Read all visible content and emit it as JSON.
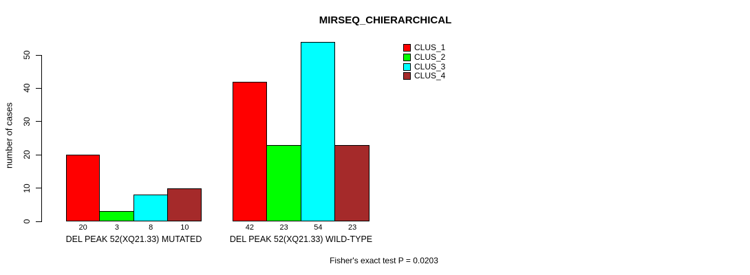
{
  "chart_data": {
    "type": "bar",
    "title": "MIRSEQ_CHIERARCHICAL",
    "ylabel": "number of cases",
    "xlabel": "",
    "ylim": [
      0,
      50
    ],
    "yticks": [
      0,
      10,
      20,
      30,
      40,
      50
    ],
    "grid": false,
    "legend_position": "top-right",
    "series": [
      {
        "name": "CLUS_1",
        "color": "#FF0000"
      },
      {
        "name": "CLUS_2",
        "color": "#00FF00"
      },
      {
        "name": "CLUS_3",
        "color": "#00FFFF"
      },
      {
        "name": "CLUS_4",
        "color": "#A52A2A"
      }
    ],
    "groups": [
      {
        "label": "DEL PEAK 52(XQ21.33) MUTATED",
        "values": [
          20,
          3,
          8,
          10
        ]
      },
      {
        "label": "DEL PEAK 52(XQ21.33) WILD-TYPE",
        "values": [
          42,
          23,
          54,
          23
        ]
      }
    ],
    "footnote": "Fisher's exact test P = 0.0203"
  }
}
